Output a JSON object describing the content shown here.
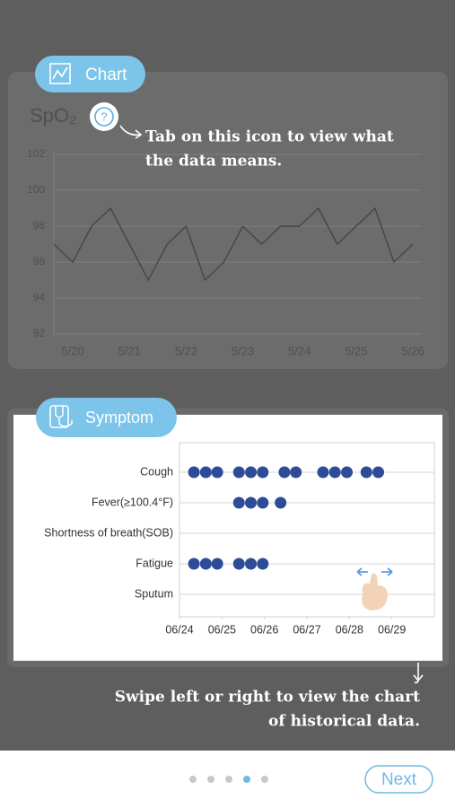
{
  "chart_badge": "Chart",
  "symptom_badge": "Symptom",
  "tip_top": [
    "Tab on this icon to view what",
    "the data means."
  ],
  "tip_bottom": [
    "Swipe left or right to view the chart",
    "of historical data."
  ],
  "next_button": "Next",
  "chart_data": [
    {
      "type": "line",
      "title": "SpO₂",
      "categories": [
        null,
        "5/20",
        null,
        null,
        "5/21",
        null,
        null,
        "5/22",
        null,
        null,
        "5/23",
        null,
        null,
        "5/24",
        null,
        null,
        "5/25",
        null,
        null,
        "5/26"
      ],
      "values": [
        97,
        96,
        98,
        99,
        97,
        95,
        97,
        98,
        95,
        96,
        98,
        97,
        98,
        98,
        99,
        97,
        98,
        99,
        96,
        97
      ],
      "color": "#454545",
      "ylim": [
        92,
        102
      ],
      "yticks": [
        92,
        94,
        96,
        98,
        100,
        102
      ],
      "grid": true
    },
    {
      "type": "scatter",
      "rows": [
        {
          "name": "Cough",
          "x": [
            0.34,
            0.62,
            0.89,
            1.4,
            1.68,
            1.96,
            2.47,
            2.74,
            3.38,
            3.66,
            3.94,
            4.4,
            4.68
          ]
        },
        {
          "name": "Fever(≥100.4°F)",
          "x": [
            1.4,
            1.68,
            1.96,
            2.38
          ]
        },
        {
          "name": "Shortness of breath(SOB)",
          "x": []
        },
        {
          "name": "Fatigue",
          "x": [
            0.34,
            0.62,
            0.89,
            1.4,
            1.68,
            1.96
          ]
        },
        {
          "name": "Sputum",
          "x": []
        }
      ],
      "xlim": [
        0,
        6
      ],
      "xticks": [
        {
          "value": 0,
          "label": "06/24"
        },
        {
          "value": 1,
          "label": "06/25"
        },
        {
          "value": 2,
          "label": "06/26"
        },
        {
          "value": 3,
          "label": "06/27"
        },
        {
          "value": 4,
          "label": "06/28"
        },
        {
          "value": 5,
          "label": "06/29"
        }
      ],
      "color": "#2d4b96",
      "grid": true
    }
  ]
}
